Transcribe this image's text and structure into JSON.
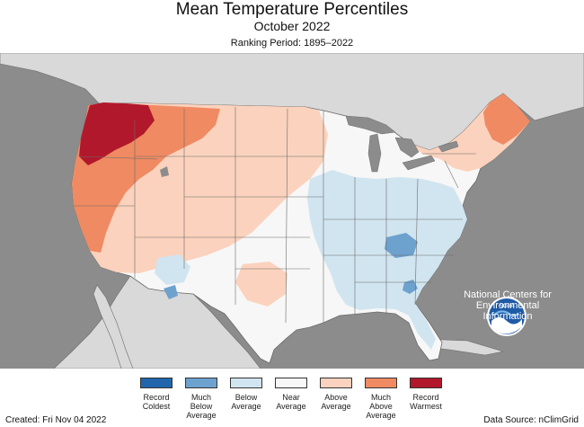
{
  "header": {
    "title": "Mean Temperature Percentiles",
    "subtitle": "October 2022",
    "ranking_period": "Ranking Period: 1895–2022"
  },
  "branding": {
    "logo_text": "NOAA",
    "org_name_lines": [
      "National Centers for",
      "Environmental",
      "Information"
    ]
  },
  "legend": {
    "items": [
      {
        "label_lines": [
          "Record",
          "Coldest"
        ],
        "color": "#2166ac"
      },
      {
        "label_lines": [
          "Much",
          "Below",
          "Average"
        ],
        "color": "#6da2cf"
      },
      {
        "label_lines": [
          "Below",
          "Average"
        ],
        "color": "#d1e5f0"
      },
      {
        "label_lines": [
          "Near",
          "Average"
        ],
        "color": "#f7f7f7"
      },
      {
        "label_lines": [
          "Above",
          "Average"
        ],
        "color": "#fbd2bd"
      },
      {
        "label_lines": [
          "Much",
          "Above",
          "Average"
        ],
        "color": "#ef8a62"
      },
      {
        "label_lines": [
          "Record",
          "Warmest"
        ],
        "color": "#b2182b"
      }
    ]
  },
  "footer": {
    "created": "Created: Fri Nov 04 2022",
    "source": "Data Source: nClimGrid"
  },
  "map_colors": {
    "ocean": "#8c8c8c",
    "land_outside": "#d9d9d9",
    "lakes": "#8c8c8c",
    "state_lines": "#6b6b6b"
  }
}
